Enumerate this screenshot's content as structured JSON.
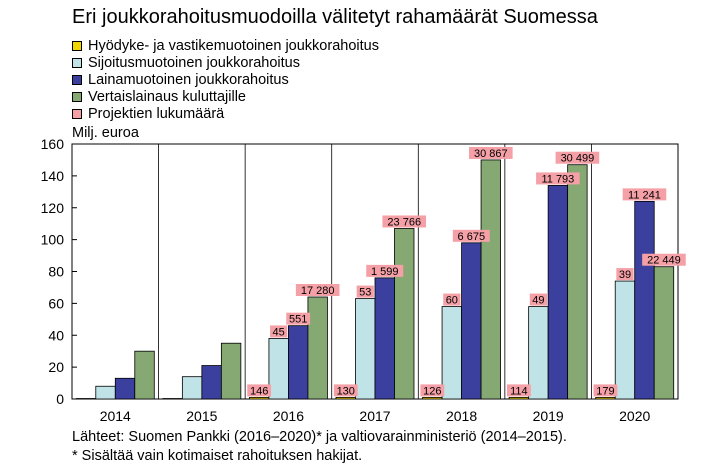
{
  "title": "Eri joukkorahoitusmuodoilla välitetyt rahamäärät Suomessa",
  "ylabel": "Milj. euroa",
  "sources": "Lähteet: Suomen Pankki (2016–2020)* ja valtiovarainministeriö (2014–2015).",
  "footnote": "* Sisältää vain kotimaiset rahoituksen hakijat.",
  "chart_data": {
    "type": "bar",
    "title": "Eri joukkorahoitusmuodoilla välitetyt rahamäärät Suomessa",
    "ylabel": "Milj. euroa",
    "xlabel": "",
    "ylim": [
      0,
      160
    ],
    "yticks": [
      0,
      20,
      40,
      60,
      80,
      100,
      120,
      140,
      160
    ],
    "grid": "vertical separators between years",
    "legend_position": "top-left",
    "categories": [
      "2014",
      "2015",
      "2016",
      "2017",
      "2018",
      "2019",
      "2020"
    ],
    "series": [
      {
        "name": "Hyödyke- ja vastikemuotoinen joukkorahoitus",
        "color": "#f2d600",
        "values": [
          0.3,
          0.3,
          1,
          1,
          1,
          1,
          1
        ]
      },
      {
        "name": "Sijoitusmuotoinen joukkorahoitus",
        "color": "#bfe3e6",
        "values": [
          8,
          14,
          38,
          63,
          58,
          58,
          74
        ]
      },
      {
        "name": "Lainamuotoinen joukkorahoitus",
        "color": "#3b3f9e",
        "values": [
          13,
          21,
          46,
          76,
          98,
          134,
          124
        ]
      },
      {
        "name": "Vertaislainaus kuluttajille",
        "color": "#86a873",
        "values": [
          30,
          35,
          64,
          107,
          150,
          147,
          83
        ]
      }
    ],
    "projects_series": {
      "name": "Projektien lukumäärä",
      "color": "#f4a0a6"
    },
    "project_labels": [
      {
        "year": "2016",
        "series": 0,
        "text": "146"
      },
      {
        "year": "2016",
        "series": 1,
        "text": "45"
      },
      {
        "year": "2016",
        "series": 2,
        "text": "551"
      },
      {
        "year": "2016",
        "series": 3,
        "text": "17 280"
      },
      {
        "year": "2017",
        "series": 0,
        "text": "130"
      },
      {
        "year": "2017",
        "series": 1,
        "text": "53"
      },
      {
        "year": "2017",
        "series": 2,
        "text": "1 599"
      },
      {
        "year": "2017",
        "series": 3,
        "text": "23 766"
      },
      {
        "year": "2018",
        "series": 0,
        "text": "126"
      },
      {
        "year": "2018",
        "series": 1,
        "text": "60"
      },
      {
        "year": "2018",
        "series": 2,
        "text": "6 675"
      },
      {
        "year": "2018",
        "series": 3,
        "text": "30 867"
      },
      {
        "year": "2019",
        "series": 0,
        "text": "114"
      },
      {
        "year": "2019",
        "series": 1,
        "text": "49"
      },
      {
        "year": "2019",
        "series": 2,
        "text": "11 793"
      },
      {
        "year": "2019",
        "series": 3,
        "text": "30 499"
      },
      {
        "year": "2020",
        "series": 0,
        "text": "179"
      },
      {
        "year": "2020",
        "series": 1,
        "text": "39"
      },
      {
        "year": "2020",
        "series": 2,
        "text": "11 241"
      },
      {
        "year": "2020",
        "series": 3,
        "text": "22 449"
      }
    ]
  }
}
